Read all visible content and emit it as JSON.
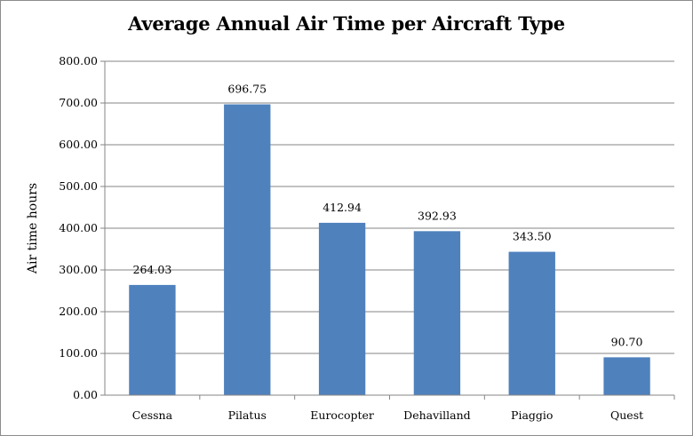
{
  "chart_data": {
    "type": "bar",
    "title": "Average Annual Air Time per Aircraft Type",
    "xlabel": "",
    "ylabel": "Air time hours",
    "categories": [
      "Cessna",
      "Pilatus",
      "Eurocopter",
      "Dehavilland",
      "Piaggio",
      "Quest"
    ],
    "values": [
      264.03,
      696.75,
      412.94,
      392.93,
      343.5,
      90.7
    ],
    "data_labels": [
      "264.03",
      "696.75",
      "412.94",
      "392.93",
      "343.50",
      "90.70"
    ],
    "ylim": [
      0,
      800
    ],
    "yticks": [
      "0.00",
      "100.00",
      "200.00",
      "300.00",
      "400.00",
      "500.00",
      "600.00",
      "700.00",
      "800.00"
    ],
    "grid": true,
    "legend": "none",
    "bar_color": "#4f81bd"
  }
}
